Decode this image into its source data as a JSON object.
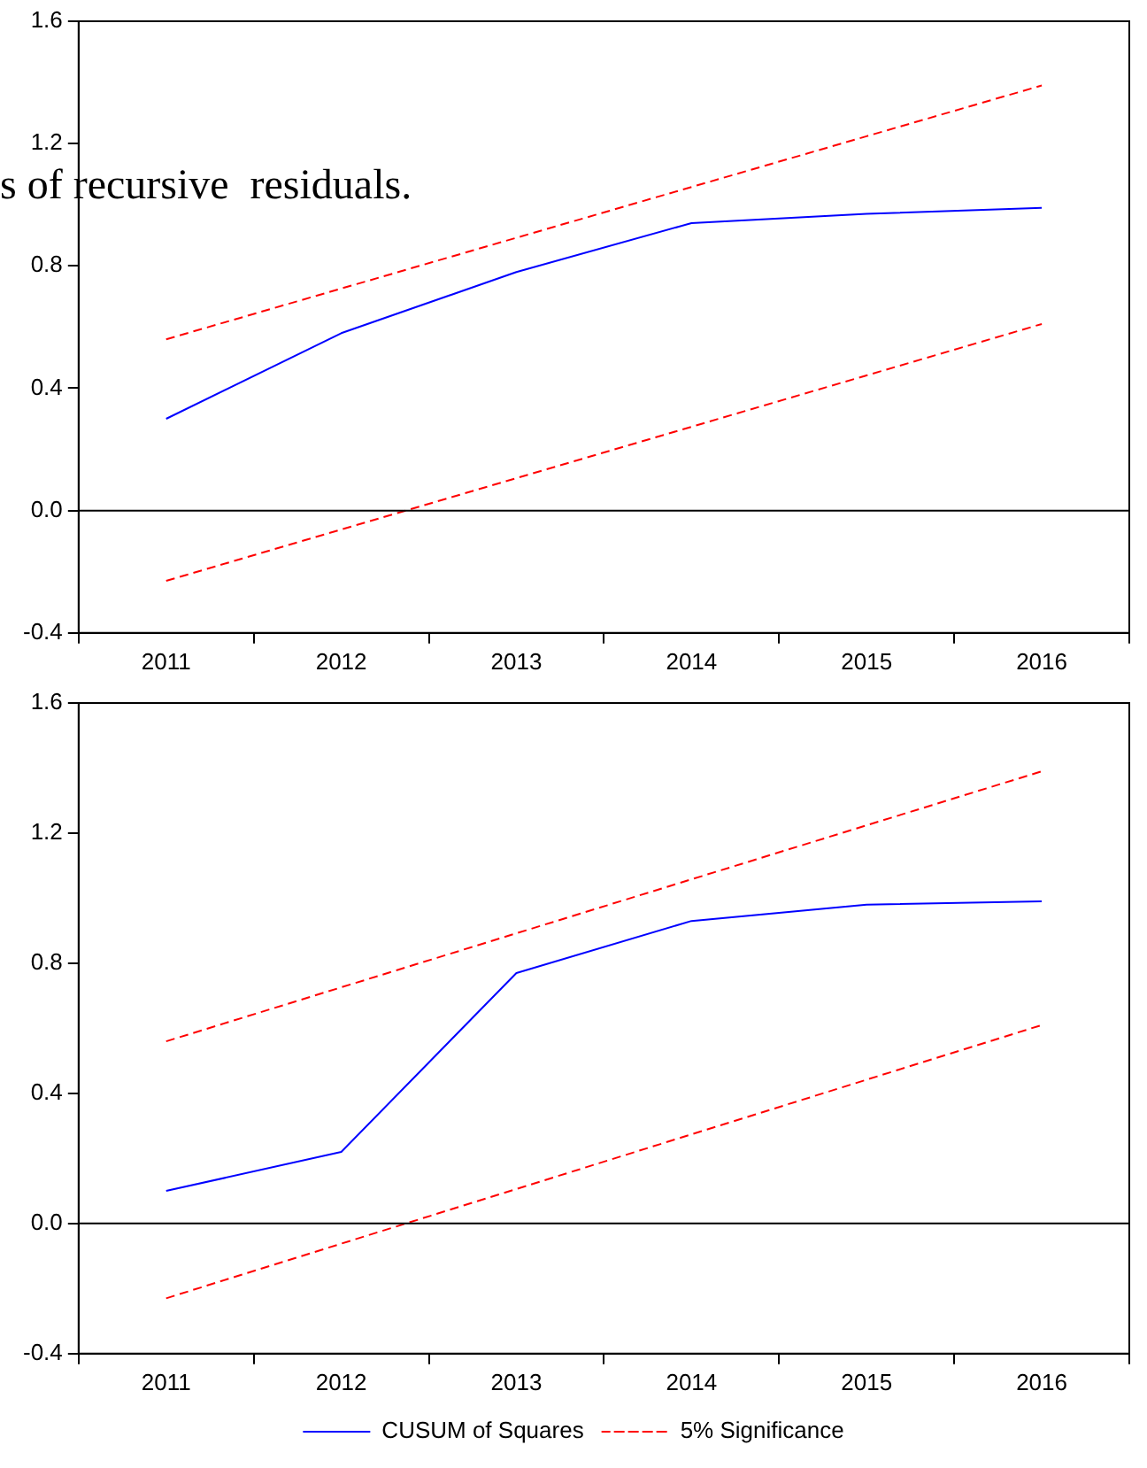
{
  "chart_data": [
    {
      "type": "line",
      "categories": [
        "2011",
        "2012",
        "2013",
        "2014",
        "2015",
        "2016"
      ],
      "ylim": [
        -0.4,
        1.6
      ],
      "yticks": [
        {
          "value": -0.4,
          "label": "-0.4"
        },
        {
          "value": 0,
          "label": "0.0"
        },
        {
          "value": 0.4,
          "label": "0.4"
        },
        {
          "value": 0.8,
          "label": "0.8"
        },
        {
          "value": 1.2,
          "label": "1.2"
        },
        {
          "value": 1.6,
          "label": "1.6"
        }
      ],
      "grid": false,
      "legend": false,
      "marker": "none",
      "series": [
        {
          "color": "#0000ff",
          "line_style": "solid",
          "values": [
            0.3,
            0.58,
            0.78,
            0.94,
            0.97,
            0.99
          ]
        },
        {
          "color": "#ff0000",
          "line_style": "dashed",
          "values": [
            0.56,
            0.726,
            0.892,
            1.058,
            1.224,
            1.39
          ]
        },
        {
          "color": "#ff0000",
          "line_style": "dashed",
          "values": [
            -0.23,
            -0.062,
            0.106,
            0.274,
            0.442,
            0.61
          ]
        }
      ],
      "ref_lines": [
        {
          "axis": "y",
          "value": 0,
          "color": "#000000",
          "line_style": "solid"
        }
      ],
      "annotations": [
        "s of recursive  residuals."
      ]
    },
    {
      "type": "line",
      "categories": [
        "2011",
        "2012",
        "2013",
        "2014",
        "2015",
        "2016"
      ],
      "ylim": [
        -0.4,
        1.6
      ],
      "yticks": [
        {
          "value": -0.4,
          "label": "-0.4"
        },
        {
          "value": 0,
          "label": "0.0"
        },
        {
          "value": 0.4,
          "label": "0.4"
        },
        {
          "value": 0.8,
          "label": "0.8"
        },
        {
          "value": 1.2,
          "label": "1.2"
        },
        {
          "value": 1.6,
          "label": "1.6"
        }
      ],
      "grid": false,
      "legend": "bottom",
      "marker": "none",
      "series": [
        {
          "name": "CUSUM of Squares",
          "color": "#0000ff",
          "line_style": "solid",
          "values": [
            0.1,
            0.22,
            0.77,
            0.93,
            0.98,
            0.99
          ]
        },
        {
          "name": "5% Significance",
          "color": "#ff0000",
          "line_style": "dashed",
          "values": [
            0.56,
            0.726,
            0.892,
            1.058,
            1.224,
            1.39
          ]
        },
        {
          "color": "#ff0000",
          "line_style": "dashed",
          "values": [
            -0.23,
            -0.062,
            0.106,
            0.274,
            0.442,
            0.61
          ]
        }
      ],
      "ref_lines": [
        {
          "axis": "y",
          "value": 0,
          "color": "#000000",
          "line_style": "solid"
        }
      ]
    }
  ]
}
